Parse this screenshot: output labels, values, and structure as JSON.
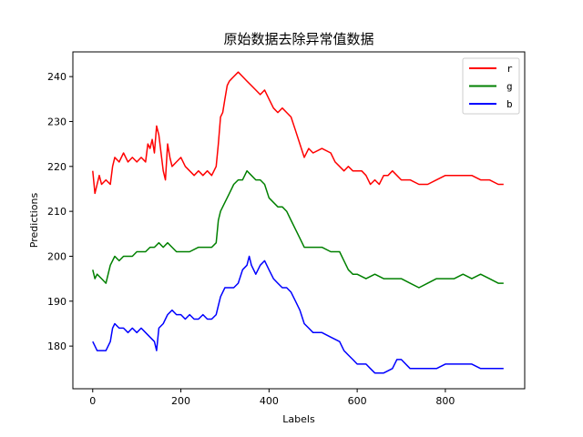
{
  "chart_data": {
    "type": "line",
    "title": "原始数据去除异常值数据",
    "xlabel": "Labels",
    "ylabel": "Predictions",
    "xlim": [
      -45,
      980
    ],
    "ylim": [
      170.5,
      245.5
    ],
    "xticks": [
      0,
      200,
      400,
      600,
      800
    ],
    "yticks": [
      180,
      190,
      200,
      210,
      220,
      230,
      240
    ],
    "grid": false,
    "legend_position": "top-right",
    "series": [
      {
        "name": "r",
        "color": "#ff0000",
        "points": [
          [
            0,
            219
          ],
          [
            5,
            214
          ],
          [
            10,
            216
          ],
          [
            15,
            218
          ],
          [
            20,
            216
          ],
          [
            30,
            217
          ],
          [
            40,
            216
          ],
          [
            45,
            220
          ],
          [
            50,
            222
          ],
          [
            60,
            221
          ],
          [
            70,
            223
          ],
          [
            80,
            221
          ],
          [
            90,
            222
          ],
          [
            100,
            221
          ],
          [
            110,
            222
          ],
          [
            120,
            221
          ],
          [
            125,
            225
          ],
          [
            130,
            224
          ],
          [
            135,
            226
          ],
          [
            140,
            223
          ],
          [
            145,
            229
          ],
          [
            150,
            227
          ],
          [
            155,
            223
          ],
          [
            160,
            219
          ],
          [
            165,
            217
          ],
          [
            170,
            225
          ],
          [
            175,
            222
          ],
          [
            180,
            220
          ],
          [
            190,
            221
          ],
          [
            200,
            222
          ],
          [
            210,
            220
          ],
          [
            220,
            219
          ],
          [
            230,
            218
          ],
          [
            240,
            219
          ],
          [
            250,
            218
          ],
          [
            260,
            219
          ],
          [
            270,
            218
          ],
          [
            280,
            220
          ],
          [
            285,
            225
          ],
          [
            290,
            231
          ],
          [
            295,
            232
          ],
          [
            300,
            235
          ],
          [
            305,
            238
          ],
          [
            310,
            239
          ],
          [
            320,
            240
          ],
          [
            330,
            241
          ],
          [
            340,
            240
          ],
          [
            350,
            239
          ],
          [
            360,
            238
          ],
          [
            370,
            237
          ],
          [
            380,
            236
          ],
          [
            390,
            237
          ],
          [
            400,
            235
          ],
          [
            410,
            233
          ],
          [
            420,
            232
          ],
          [
            430,
            233
          ],
          [
            440,
            232
          ],
          [
            450,
            231
          ],
          [
            460,
            228
          ],
          [
            470,
            225
          ],
          [
            480,
            222
          ],
          [
            490,
            224
          ],
          [
            500,
            223
          ],
          [
            520,
            224
          ],
          [
            540,
            223
          ],
          [
            550,
            221
          ],
          [
            560,
            220
          ],
          [
            570,
            219
          ],
          [
            580,
            220
          ],
          [
            590,
            219
          ],
          [
            600,
            219
          ],
          [
            610,
            219
          ],
          [
            620,
            218
          ],
          [
            630,
            216
          ],
          [
            640,
            217
          ],
          [
            650,
            216
          ],
          [
            660,
            218
          ],
          [
            670,
            218
          ],
          [
            680,
            219
          ],
          [
            690,
            218
          ],
          [
            700,
            217
          ],
          [
            720,
            217
          ],
          [
            740,
            216
          ],
          [
            760,
            216
          ],
          [
            780,
            217
          ],
          [
            800,
            218
          ],
          [
            820,
            218
          ],
          [
            840,
            218
          ],
          [
            860,
            218
          ],
          [
            880,
            217
          ],
          [
            900,
            217
          ],
          [
            920,
            216
          ],
          [
            932,
            216
          ]
        ]
      },
      {
        "name": "g",
        "color": "#008000",
        "points": [
          [
            0,
            197
          ],
          [
            5,
            195
          ],
          [
            10,
            196
          ],
          [
            20,
            195
          ],
          [
            30,
            194
          ],
          [
            35,
            196
          ],
          [
            40,
            198
          ],
          [
            50,
            200
          ],
          [
            60,
            199
          ],
          [
            70,
            200
          ],
          [
            80,
            200
          ],
          [
            90,
            200
          ],
          [
            100,
            201
          ],
          [
            110,
            201
          ],
          [
            120,
            201
          ],
          [
            130,
            202
          ],
          [
            140,
            202
          ],
          [
            150,
            203
          ],
          [
            160,
            202
          ],
          [
            170,
            203
          ],
          [
            180,
            202
          ],
          [
            190,
            201
          ],
          [
            200,
            201
          ],
          [
            220,
            201
          ],
          [
            240,
            202
          ],
          [
            260,
            202
          ],
          [
            270,
            202
          ],
          [
            280,
            203
          ],
          [
            285,
            208
          ],
          [
            290,
            210
          ],
          [
            300,
            212
          ],
          [
            310,
            214
          ],
          [
            320,
            216
          ],
          [
            330,
            217
          ],
          [
            340,
            217
          ],
          [
            350,
            219
          ],
          [
            360,
            218
          ],
          [
            370,
            217
          ],
          [
            380,
            217
          ],
          [
            390,
            216
          ],
          [
            400,
            213
          ],
          [
            410,
            212
          ],
          [
            420,
            211
          ],
          [
            430,
            211
          ],
          [
            440,
            210
          ],
          [
            450,
            208
          ],
          [
            460,
            206
          ],
          [
            470,
            204
          ],
          [
            480,
            202
          ],
          [
            490,
            202
          ],
          [
            500,
            202
          ],
          [
            520,
            202
          ],
          [
            540,
            201
          ],
          [
            550,
            201
          ],
          [
            560,
            201
          ],
          [
            570,
            199
          ],
          [
            580,
            197
          ],
          [
            590,
            196
          ],
          [
            600,
            196
          ],
          [
            620,
            195
          ],
          [
            640,
            196
          ],
          [
            660,
            195
          ],
          [
            680,
            195
          ],
          [
            700,
            195
          ],
          [
            720,
            194
          ],
          [
            740,
            193
          ],
          [
            760,
            194
          ],
          [
            780,
            195
          ],
          [
            800,
            195
          ],
          [
            820,
            195
          ],
          [
            840,
            196
          ],
          [
            860,
            195
          ],
          [
            880,
            196
          ],
          [
            900,
            195
          ],
          [
            920,
            194
          ],
          [
            932,
            194
          ]
        ]
      },
      {
        "name": "b",
        "color": "#0000ff",
        "points": [
          [
            0,
            181
          ],
          [
            5,
            180
          ],
          [
            10,
            179
          ],
          [
            20,
            179
          ],
          [
            30,
            179
          ],
          [
            40,
            181
          ],
          [
            45,
            184
          ],
          [
            50,
            185
          ],
          [
            60,
            184
          ],
          [
            70,
            184
          ],
          [
            80,
            183
          ],
          [
            90,
            184
          ],
          [
            100,
            183
          ],
          [
            110,
            184
          ],
          [
            120,
            183
          ],
          [
            130,
            182
          ],
          [
            140,
            181
          ],
          [
            145,
            179
          ],
          [
            150,
            184
          ],
          [
            160,
            185
          ],
          [
            170,
            187
          ],
          [
            180,
            188
          ],
          [
            190,
            187
          ],
          [
            200,
            187
          ],
          [
            210,
            186
          ],
          [
            220,
            187
          ],
          [
            230,
            186
          ],
          [
            240,
            186
          ],
          [
            250,
            187
          ],
          [
            260,
            186
          ],
          [
            270,
            186
          ],
          [
            280,
            187
          ],
          [
            285,
            189
          ],
          [
            290,
            191
          ],
          [
            300,
            193
          ],
          [
            310,
            193
          ],
          [
            320,
            193
          ],
          [
            330,
            194
          ],
          [
            340,
            197
          ],
          [
            350,
            198
          ],
          [
            355,
            200
          ],
          [
            360,
            198
          ],
          [
            370,
            196
          ],
          [
            380,
            198
          ],
          [
            390,
            199
          ],
          [
            400,
            197
          ],
          [
            410,
            195
          ],
          [
            420,
            194
          ],
          [
            430,
            193
          ],
          [
            440,
            193
          ],
          [
            450,
            192
          ],
          [
            460,
            190
          ],
          [
            470,
            188
          ],
          [
            480,
            185
          ],
          [
            490,
            184
          ],
          [
            500,
            183
          ],
          [
            520,
            183
          ],
          [
            540,
            182
          ],
          [
            560,
            181
          ],
          [
            570,
            179
          ],
          [
            580,
            178
          ],
          [
            590,
            177
          ],
          [
            600,
            176
          ],
          [
            620,
            176
          ],
          [
            630,
            175
          ],
          [
            640,
            174
          ],
          [
            660,
            174
          ],
          [
            680,
            175
          ],
          [
            690,
            177
          ],
          [
            700,
            177
          ],
          [
            720,
            175
          ],
          [
            740,
            175
          ],
          [
            760,
            175
          ],
          [
            780,
            175
          ],
          [
            800,
            176
          ],
          [
            820,
            176
          ],
          [
            840,
            176
          ],
          [
            860,
            176
          ],
          [
            880,
            175
          ],
          [
            900,
            175
          ],
          [
            920,
            175
          ],
          [
            932,
            175
          ]
        ]
      }
    ]
  }
}
